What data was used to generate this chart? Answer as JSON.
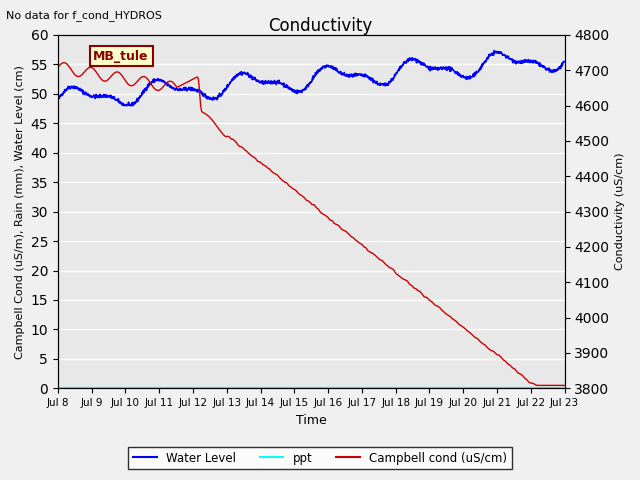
{
  "title": "Conductivity",
  "top_left_text": "No data for f_cond_HYDROS",
  "annotation_box": "MB_tule",
  "xlabel": "Time",
  "ylabel_left": "Campbell Cond (uS/m), Rain (mm), Water Level (cm)",
  "ylabel_right": "Conductivity (uS/cm)",
  "xlim": [
    0,
    15
  ],
  "ylim_left": [
    0,
    60
  ],
  "ylim_right": [
    3800,
    4800
  ],
  "x_ticks_labels": [
    "Jul 8",
    "Jul 9",
    "Jul 10",
    "Jul 11",
    "Jul 12",
    "Jul 13",
    "Jul 14",
    "Jul 15",
    "Jul 16",
    "Jul 17",
    "Jul 18",
    "Jul 19",
    "Jul 20",
    "Jul 21",
    "Jul 22",
    "Jul 23"
  ],
  "y_ticks_left": [
    0,
    5,
    10,
    15,
    20,
    25,
    30,
    35,
    40,
    45,
    50,
    55,
    60
  ],
  "y_ticks_right": [
    3800,
    3900,
    4000,
    4100,
    4200,
    4300,
    4400,
    4500,
    4600,
    4700,
    4800
  ],
  "background_color": "#e8e8e8",
  "fig_background": "#f0f0f0",
  "grid_color": "#ffffff",
  "water_level_color": "#0000ff",
  "ppt_color": "#00ffff",
  "campbell_color": "#cc0000",
  "legend_labels": [
    "Water Level",
    "ppt",
    "Campbell cond (uS/cm)"
  ],
  "legend_colors": [
    "#0000ff",
    "#00ffff",
    "#cc0000"
  ]
}
